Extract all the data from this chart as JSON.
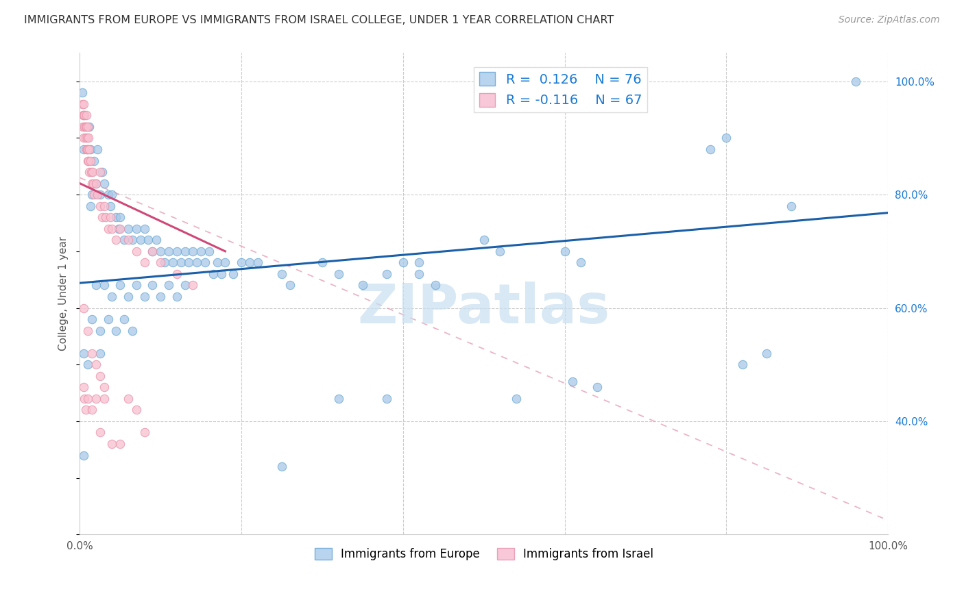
{
  "title": "IMMIGRANTS FROM EUROPE VS IMMIGRANTS FROM ISRAEL COLLEGE, UNDER 1 YEAR CORRELATION CHART",
  "source": "Source: ZipAtlas.com",
  "ylabel": "College, Under 1 year",
  "xlim": [
    0.0,
    1.0
  ],
  "ylim": [
    0.2,
    1.05
  ],
  "x_ticks": [
    0.0,
    0.2,
    0.4,
    0.6,
    0.8,
    1.0
  ],
  "x_tick_labels": [
    "0.0%",
    "",
    "",
    "",
    "",
    "100.0%"
  ],
  "y_ticks_right": [
    0.4,
    0.6,
    0.8,
    1.0
  ],
  "y_tick_labels_right": [
    "40.0%",
    "60.0%",
    "80.0%",
    "100.0%"
  ],
  "blue_color": "#a8c8e8",
  "blue_edge_color": "#6aaad4",
  "pink_color": "#f8c0d0",
  "pink_edge_color": "#e890a8",
  "blue_line_color": "#1a5fa8",
  "pink_line_color": "#d04878",
  "pink_dash_color": "#e8a0b8",
  "background_color": "#ffffff",
  "grid_color": "#cccccc",
  "watermark_text": "ZIPatlas",
  "watermark_color": "#c8dff0",
  "legend_r_n_color": "#1a7ad4",
  "blue_scatter": [
    [
      0.003,
      0.98
    ],
    [
      0.005,
      0.88
    ],
    [
      0.012,
      0.92
    ],
    [
      0.013,
      0.88
    ],
    [
      0.018,
      0.86
    ],
    [
      0.022,
      0.88
    ],
    [
      0.028,
      0.84
    ],
    [
      0.013,
      0.78
    ],
    [
      0.015,
      0.8
    ],
    [
      0.02,
      0.82
    ],
    [
      0.025,
      0.8
    ],
    [
      0.03,
      0.82
    ],
    [
      0.035,
      0.8
    ],
    [
      0.038,
      0.78
    ],
    [
      0.04,
      0.8
    ],
    [
      0.045,
      0.76
    ],
    [
      0.048,
      0.74
    ],
    [
      0.05,
      0.76
    ],
    [
      0.055,
      0.72
    ],
    [
      0.06,
      0.74
    ],
    [
      0.065,
      0.72
    ],
    [
      0.07,
      0.74
    ],
    [
      0.075,
      0.72
    ],
    [
      0.08,
      0.74
    ],
    [
      0.085,
      0.72
    ],
    [
      0.09,
      0.7
    ],
    [
      0.095,
      0.72
    ],
    [
      0.1,
      0.7
    ],
    [
      0.105,
      0.68
    ],
    [
      0.11,
      0.7
    ],
    [
      0.115,
      0.68
    ],
    [
      0.12,
      0.7
    ],
    [
      0.125,
      0.68
    ],
    [
      0.13,
      0.7
    ],
    [
      0.135,
      0.68
    ],
    [
      0.14,
      0.7
    ],
    [
      0.145,
      0.68
    ],
    [
      0.15,
      0.7
    ],
    [
      0.155,
      0.68
    ],
    [
      0.16,
      0.7
    ],
    [
      0.165,
      0.66
    ],
    [
      0.17,
      0.68
    ],
    [
      0.175,
      0.66
    ],
    [
      0.18,
      0.68
    ],
    [
      0.19,
      0.66
    ],
    [
      0.2,
      0.68
    ],
    [
      0.02,
      0.64
    ],
    [
      0.03,
      0.64
    ],
    [
      0.04,
      0.62
    ],
    [
      0.05,
      0.64
    ],
    [
      0.06,
      0.62
    ],
    [
      0.07,
      0.64
    ],
    [
      0.08,
      0.62
    ],
    [
      0.09,
      0.64
    ],
    [
      0.1,
      0.62
    ],
    [
      0.11,
      0.64
    ],
    [
      0.12,
      0.62
    ],
    [
      0.13,
      0.64
    ],
    [
      0.015,
      0.58
    ],
    [
      0.025,
      0.56
    ],
    [
      0.035,
      0.58
    ],
    [
      0.045,
      0.56
    ],
    [
      0.055,
      0.58
    ],
    [
      0.065,
      0.56
    ],
    [
      0.005,
      0.52
    ],
    [
      0.01,
      0.5
    ],
    [
      0.025,
      0.52
    ],
    [
      0.21,
      0.68
    ],
    [
      0.22,
      0.68
    ],
    [
      0.25,
      0.66
    ],
    [
      0.26,
      0.64
    ],
    [
      0.3,
      0.68
    ],
    [
      0.32,
      0.66
    ],
    [
      0.35,
      0.64
    ],
    [
      0.38,
      0.66
    ],
    [
      0.4,
      0.68
    ],
    [
      0.42,
      0.66
    ],
    [
      0.44,
      0.64
    ],
    [
      0.32,
      0.44
    ],
    [
      0.38,
      0.44
    ],
    [
      0.42,
      0.68
    ],
    [
      0.5,
      0.72
    ],
    [
      0.52,
      0.7
    ],
    [
      0.54,
      0.44
    ],
    [
      0.6,
      0.7
    ],
    [
      0.61,
      0.47
    ],
    [
      0.62,
      0.68
    ],
    [
      0.64,
      0.46
    ],
    [
      0.78,
      0.88
    ],
    [
      0.8,
      0.9
    ],
    [
      0.82,
      0.5
    ],
    [
      0.85,
      0.52
    ],
    [
      0.88,
      0.78
    ],
    [
      0.96,
      1.0
    ],
    [
      0.005,
      0.34
    ],
    [
      0.25,
      0.32
    ]
  ],
  "pink_scatter": [
    [
      0.003,
      0.96
    ],
    [
      0.004,
      0.94
    ],
    [
      0.004,
      0.92
    ],
    [
      0.005,
      0.96
    ],
    [
      0.005,
      0.94
    ],
    [
      0.005,
      0.9
    ],
    [
      0.006,
      0.94
    ],
    [
      0.006,
      0.92
    ],
    [
      0.007,
      0.92
    ],
    [
      0.007,
      0.9
    ],
    [
      0.008,
      0.94
    ],
    [
      0.008,
      0.92
    ],
    [
      0.008,
      0.88
    ],
    [
      0.009,
      0.9
    ],
    [
      0.009,
      0.88
    ],
    [
      0.01,
      0.92
    ],
    [
      0.01,
      0.88
    ],
    [
      0.01,
      0.86
    ],
    [
      0.011,
      0.9
    ],
    [
      0.011,
      0.86
    ],
    [
      0.012,
      0.88
    ],
    [
      0.012,
      0.84
    ],
    [
      0.013,
      0.86
    ],
    [
      0.014,
      0.84
    ],
    [
      0.015,
      0.82
    ],
    [
      0.016,
      0.84
    ],
    [
      0.017,
      0.82
    ],
    [
      0.018,
      0.8
    ],
    [
      0.02,
      0.82
    ],
    [
      0.022,
      0.8
    ],
    [
      0.025,
      0.78
    ],
    [
      0.028,
      0.76
    ],
    [
      0.03,
      0.78
    ],
    [
      0.032,
      0.76
    ],
    [
      0.035,
      0.74
    ],
    [
      0.038,
      0.76
    ],
    [
      0.04,
      0.74
    ],
    [
      0.045,
      0.72
    ],
    [
      0.05,
      0.74
    ],
    [
      0.06,
      0.72
    ],
    [
      0.07,
      0.7
    ],
    [
      0.08,
      0.68
    ],
    [
      0.09,
      0.7
    ],
    [
      0.1,
      0.68
    ],
    [
      0.12,
      0.66
    ],
    [
      0.14,
      0.64
    ],
    [
      0.025,
      0.84
    ],
    [
      0.005,
      0.46
    ],
    [
      0.006,
      0.44
    ],
    [
      0.007,
      0.42
    ],
    [
      0.01,
      0.44
    ],
    [
      0.015,
      0.42
    ],
    [
      0.02,
      0.44
    ],
    [
      0.025,
      0.38
    ],
    [
      0.03,
      0.44
    ],
    [
      0.04,
      0.36
    ],
    [
      0.06,
      0.44
    ],
    [
      0.07,
      0.42
    ],
    [
      0.08,
      0.38
    ],
    [
      0.005,
      0.6
    ],
    [
      0.01,
      0.56
    ],
    [
      0.015,
      0.52
    ],
    [
      0.02,
      0.5
    ],
    [
      0.025,
      0.48
    ],
    [
      0.03,
      0.46
    ],
    [
      0.05,
      0.36
    ]
  ],
  "blue_line": {
    "x0": 0.0,
    "y0": 0.644,
    "x1": 1.0,
    "y1": 0.768
  },
  "pink_line": {
    "x0": 0.0,
    "y0": 0.82,
    "x1": 0.18,
    "y1": 0.7
  },
  "pink_dashed_line": {
    "x0": 0.0,
    "y0": 0.83,
    "x1": 1.0,
    "y1": 0.225
  }
}
